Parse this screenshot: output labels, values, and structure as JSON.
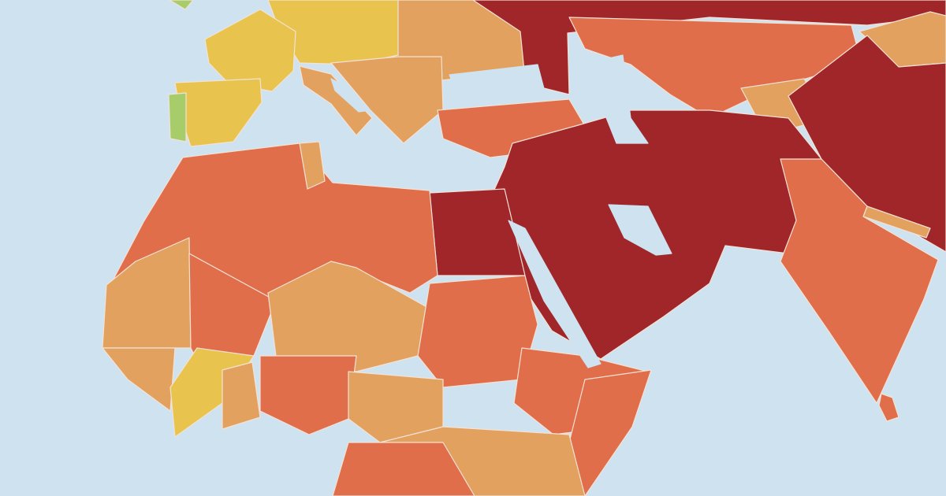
{
  "map": {
    "ocean_color": "#cfe2f0",
    "palette": [
      "#a0262a",
      "#e06e4a",
      "#e2a15f",
      "#e8c44e",
      "#a7cd6b"
    ],
    "border_color": "#f3e2d6"
  }
}
